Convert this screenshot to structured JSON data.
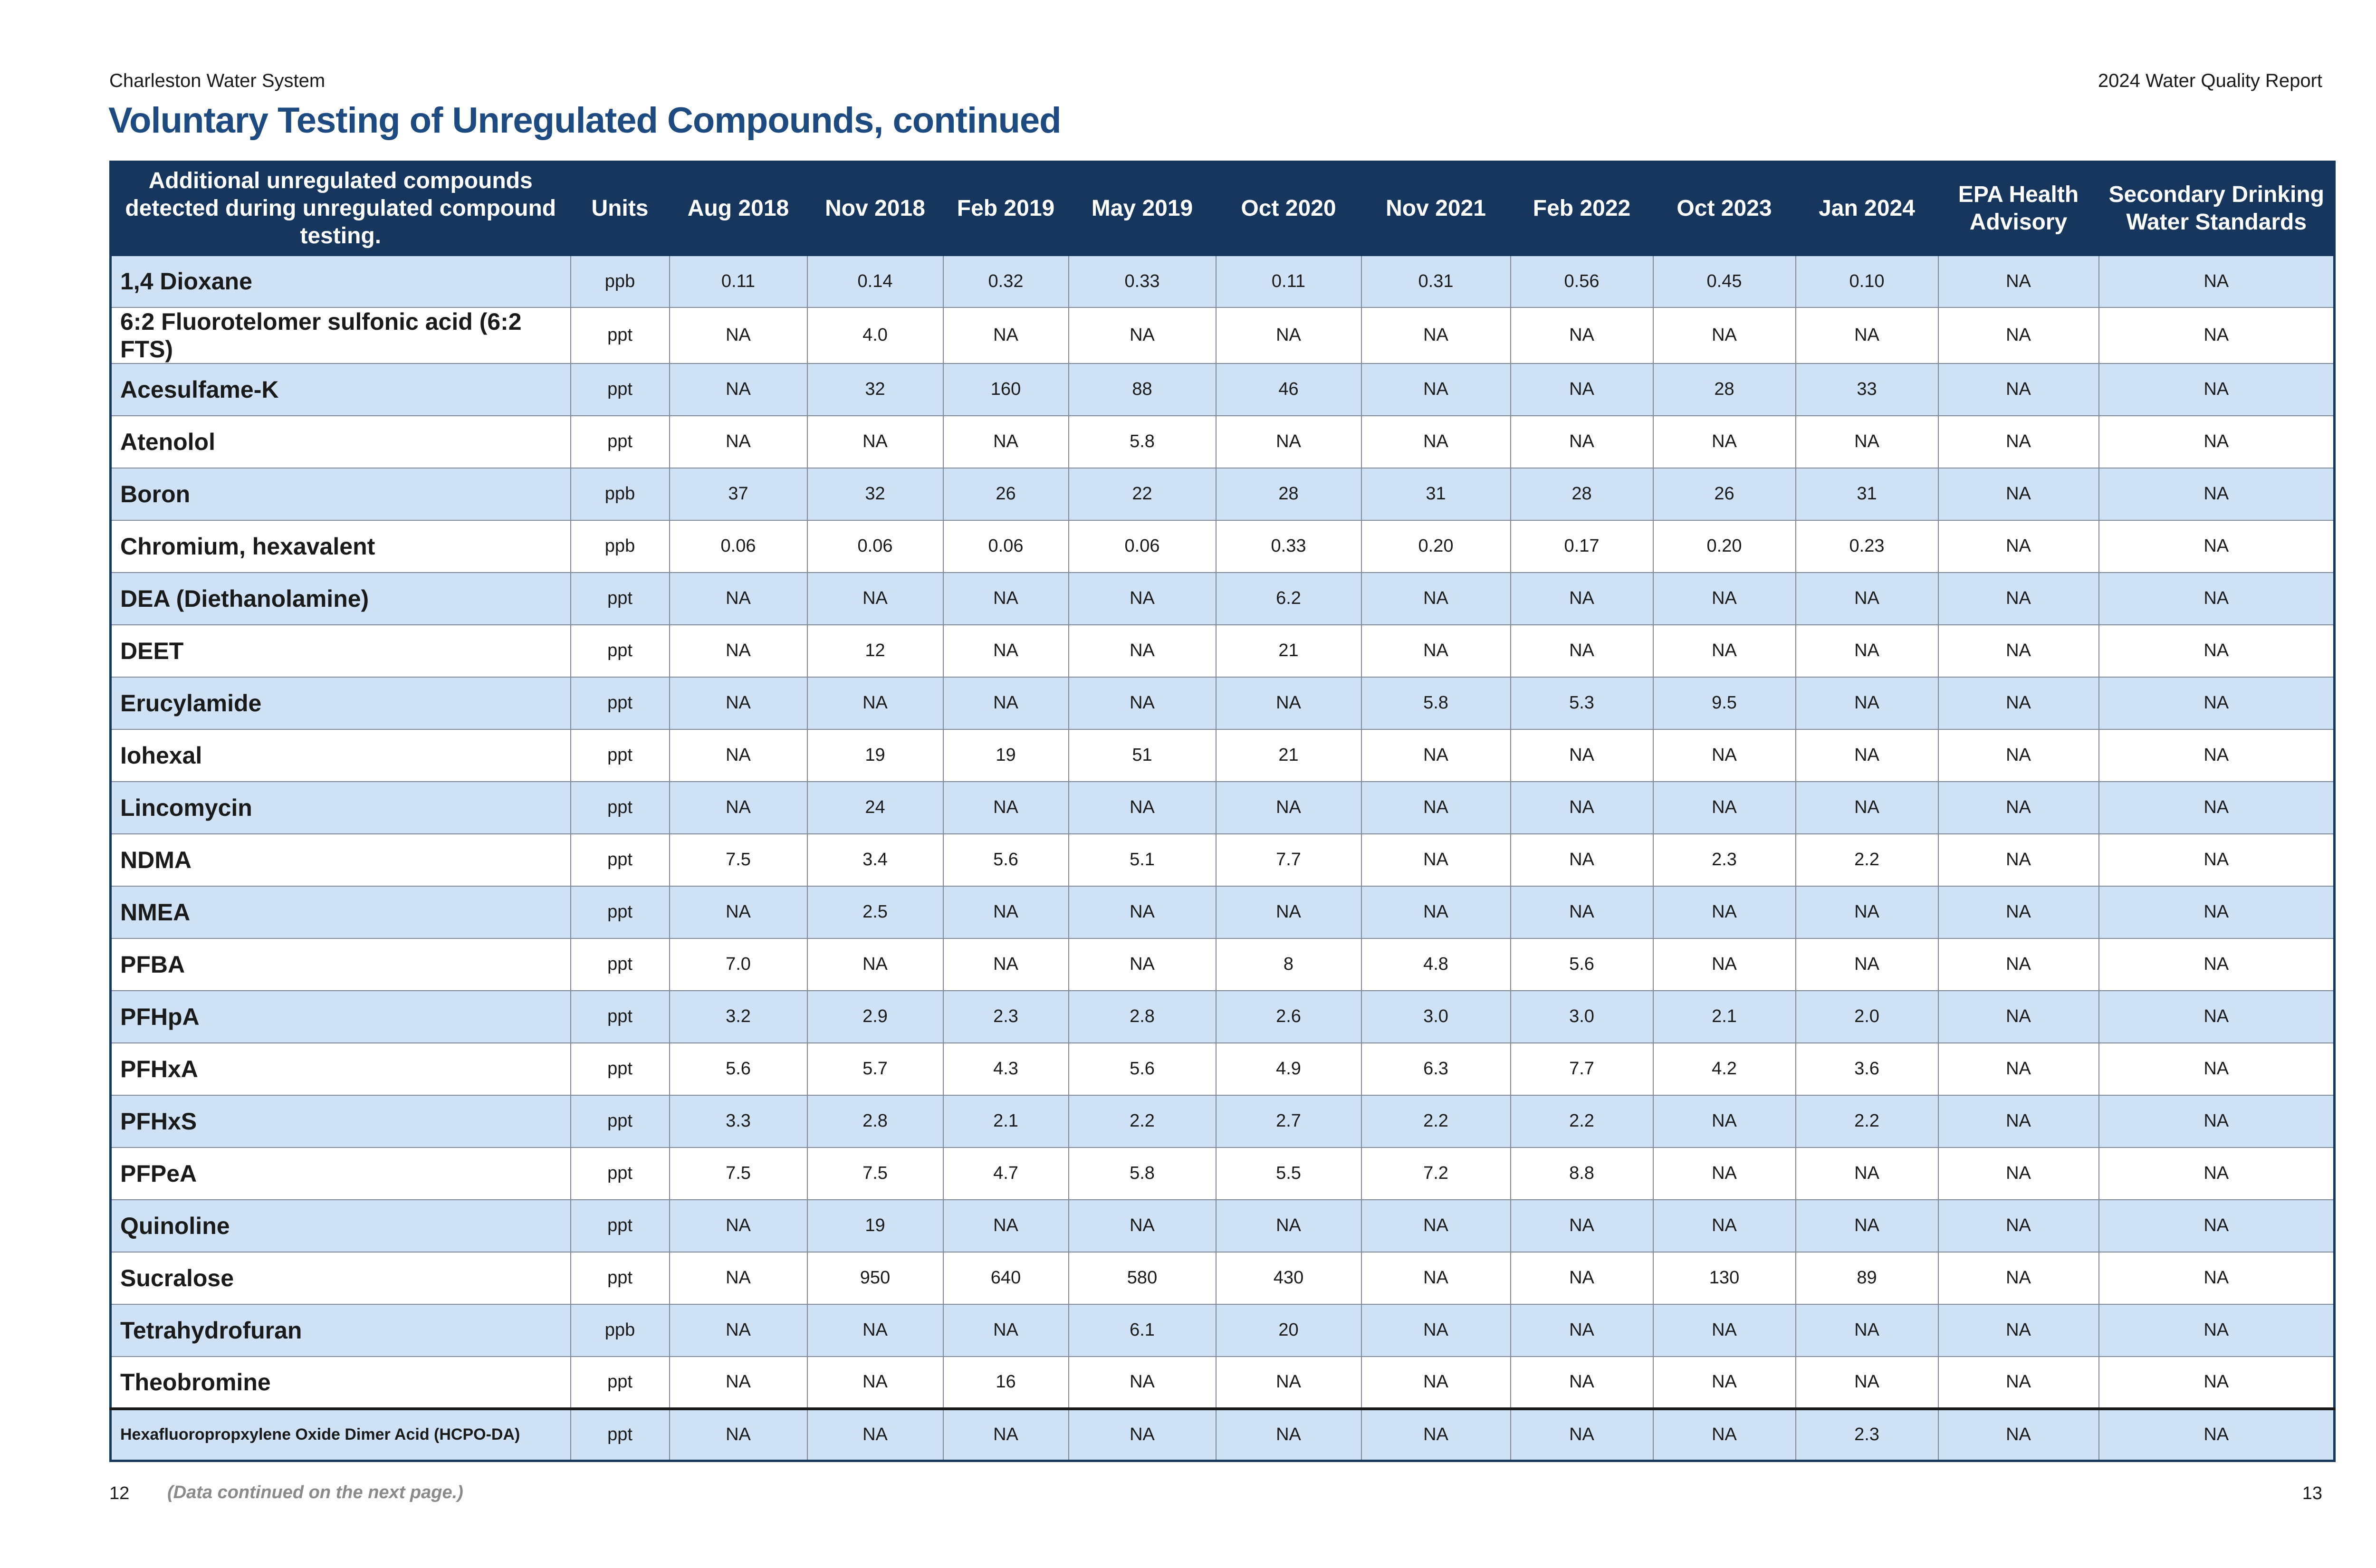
{
  "header": {
    "left": "Charleston Water System",
    "right": "2024 Water Quality Report"
  },
  "title": "Voluntary Testing of Unregulated Compounds, continued",
  "table": {
    "columns": [
      "Additional unregulated compounds detected during unregulated compound testing.",
      "Units",
      "Aug 2018",
      "Nov 2018",
      "Feb 2019",
      "May 2019",
      "Oct 2020",
      "Nov 2021",
      "Feb 2022",
      "Oct 2023",
      "Jan 2024",
      "EPA Health Advisory",
      "Secondary Drinking Water Standards"
    ],
    "rows": [
      [
        "1,4 Dioxane",
        "ppb",
        "0.11",
        "0.14",
        "0.32",
        "0.33",
        "0.11",
        "0.31",
        "0.56",
        "0.45",
        "0.10",
        "NA",
        "NA"
      ],
      [
        "6:2 Fluorotelomer sulfonic acid (6:2 FTS)",
        "ppt",
        "NA",
        "4.0",
        "NA",
        "NA",
        "NA",
        "NA",
        "NA",
        "NA",
        "NA",
        "NA",
        "NA"
      ],
      [
        "Acesulfame-K",
        "ppt",
        "NA",
        "32",
        "160",
        "88",
        "46",
        "NA",
        "NA",
        "28",
        "33",
        "NA",
        "NA"
      ],
      [
        "Atenolol",
        "ppt",
        "NA",
        "NA",
        "NA",
        "5.8",
        "NA",
        "NA",
        "NA",
        "NA",
        "NA",
        "NA",
        "NA"
      ],
      [
        "Boron",
        "ppb",
        "37",
        "32",
        "26",
        "22",
        "28",
        "31",
        "28",
        "26",
        "31",
        "NA",
        "NA"
      ],
      [
        "Chromium, hexavalent",
        "ppb",
        "0.06",
        "0.06",
        "0.06",
        "0.06",
        "0.33",
        "0.20",
        "0.17",
        "0.20",
        "0.23",
        "NA",
        "NA"
      ],
      [
        "DEA (Diethanolamine)",
        "ppt",
        "NA",
        "NA",
        "NA",
        "NA",
        "6.2",
        "NA",
        "NA",
        "NA",
        "NA",
        "NA",
        "NA"
      ],
      [
        "DEET",
        "ppt",
        "NA",
        "12",
        "NA",
        "NA",
        "21",
        "NA",
        "NA",
        "NA",
        "NA",
        "NA",
        "NA"
      ],
      [
        "Erucylamide",
        "ppt",
        "NA",
        "NA",
        "NA",
        "NA",
        "NA",
        "5.8",
        "5.3",
        "9.5",
        "NA",
        "NA",
        "NA"
      ],
      [
        "Iohexal",
        "ppt",
        "NA",
        "19",
        "19",
        "51",
        "21",
        "NA",
        "NA",
        "NA",
        "NA",
        "NA",
        "NA"
      ],
      [
        "Lincomycin",
        "ppt",
        "NA",
        "24",
        "NA",
        "NA",
        "NA",
        "NA",
        "NA",
        "NA",
        "NA",
        "NA",
        "NA"
      ],
      [
        "NDMA",
        "ppt",
        "7.5",
        "3.4",
        "5.6",
        "5.1",
        "7.7",
        "NA",
        "NA",
        "2.3",
        "2.2",
        "NA",
        "NA"
      ],
      [
        "NMEA",
        "ppt",
        "NA",
        "2.5",
        "NA",
        "NA",
        "NA",
        "NA",
        "NA",
        "NA",
        "NA",
        "NA",
        "NA"
      ],
      [
        "PFBA",
        "ppt",
        "7.0",
        "NA",
        "NA",
        "NA",
        "8",
        "4.8",
        "5.6",
        "NA",
        "NA",
        "NA",
        "NA"
      ],
      [
        "PFHpA",
        "ppt",
        "3.2",
        "2.9",
        "2.3",
        "2.8",
        "2.6",
        "3.0",
        "3.0",
        "2.1",
        "2.0",
        "NA",
        "NA"
      ],
      [
        "PFHxA",
        "ppt",
        "5.6",
        "5.7",
        "4.3",
        "5.6",
        "4.9",
        "6.3",
        "7.7",
        "4.2",
        "3.6",
        "NA",
        "NA"
      ],
      [
        "PFHxS",
        "ppt",
        "3.3",
        "2.8",
        "2.1",
        "2.2",
        "2.7",
        "2.2",
        "2.2",
        "NA",
        "2.2",
        "NA",
        "NA"
      ],
      [
        "PFPeA",
        "ppt",
        "7.5",
        "7.5",
        "4.7",
        "5.8",
        "5.5",
        "7.2",
        "8.8",
        "NA",
        "NA",
        "NA",
        "NA"
      ],
      [
        "Quinoline",
        "ppt",
        "NA",
        "19",
        "NA",
        "NA",
        "NA",
        "NA",
        "NA",
        "NA",
        "NA",
        "NA",
        "NA"
      ],
      [
        "Sucralose",
        "ppt",
        "NA",
        "950",
        "640",
        "580",
        "430",
        "NA",
        "NA",
        "130",
        "89",
        "NA",
        "NA"
      ],
      [
        "Tetrahydrofuran",
        "ppb",
        "NA",
        "NA",
        "NA",
        "6.1",
        "20",
        "NA",
        "NA",
        "NA",
        "NA",
        "NA",
        "NA"
      ],
      [
        "Theobromine",
        "ppt",
        "NA",
        "NA",
        "16",
        "NA",
        "NA",
        "NA",
        "NA",
        "NA",
        "NA",
        "NA",
        "NA"
      ],
      [
        "Hexafluoropropxylene Oxide Dimer Acid (HCPO-DA)",
        "ppt",
        "NA",
        "NA",
        "NA",
        "NA",
        "NA",
        "NA",
        "NA",
        "NA",
        "2.3",
        "NA",
        "NA"
      ]
    ]
  },
  "footer": {
    "page_left": "12",
    "note": "(Data continued on the next page.)",
    "page_right": "13"
  }
}
